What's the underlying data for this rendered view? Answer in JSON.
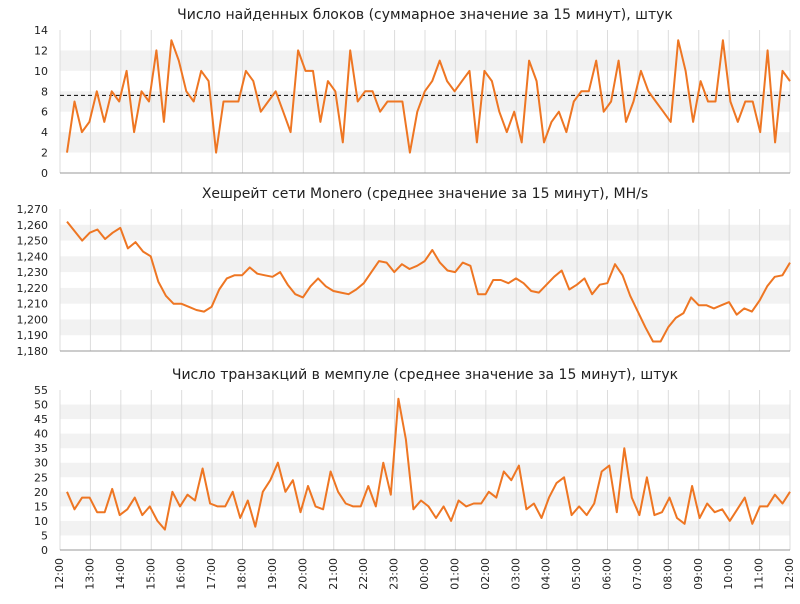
{
  "colors": {
    "series": "#ee7623",
    "band": "#f2f2f2",
    "grid_v": "#dcdcdc",
    "axis": "#999999",
    "reference": "#000000"
  },
  "x_ticks": [
    "12:00",
    "13:00",
    "14:00",
    "15:00",
    "16:00",
    "17:00",
    "18:00",
    "19:00",
    "20:00",
    "21:00",
    "22:00",
    "23:00",
    "00:00",
    "01:00",
    "02:00",
    "03:00",
    "04:00",
    "05:00",
    "06:00",
    "07:00",
    "08:00",
    "09:00",
    "10:00",
    "11:00",
    "12:00"
  ],
  "chart_data": [
    {
      "type": "line",
      "title": "Число найденных блоков (суммарное значение за 15 минут), штук",
      "ylim": [
        0,
        14
      ],
      "yticks": [
        "0",
        "2",
        "4",
        "6",
        "8",
        "10",
        "12",
        "14"
      ],
      "reference_line": 7.6,
      "grid": true,
      "values": [
        2,
        7,
        4,
        5,
        8,
        5,
        8,
        7,
        10,
        4,
        8,
        7,
        12,
        5,
        13,
        11,
        8,
        7,
        10,
        9,
        2,
        7,
        7,
        7,
        10,
        9,
        6,
        7,
        8,
        6,
        4,
        12,
        10,
        10,
        5,
        9,
        8,
        3,
        12,
        7,
        8,
        8,
        6,
        7,
        7,
        7,
        2,
        6,
        8,
        9,
        11,
        9,
        8,
        9,
        10,
        3,
        10,
        9,
        6,
        4,
        6,
        3,
        11,
        9,
        3,
        5,
        6,
        4,
        7,
        8,
        8,
        11,
        6,
        7,
        11,
        5,
        7,
        10,
        8,
        7,
        6,
        5,
        13,
        10,
        5,
        9,
        7,
        7,
        13,
        7,
        5,
        7,
        7,
        4,
        12,
        3,
        10,
        9
      ]
    },
    {
      "type": "line",
      "title": "Хешрейт сети Monero (среднее значение за 15 минут), MH/s",
      "ylim": [
        1180,
        1270
      ],
      "yticks": [
        "1,180",
        "1,190",
        "1,200",
        "1,210",
        "1,220",
        "1,230",
        "1,240",
        "1,250",
        "1,260",
        "1,270"
      ],
      "grid": true,
      "values": [
        1262,
        1256,
        1250,
        1255,
        1257,
        1251,
        1255,
        1258,
        1245,
        1249,
        1243,
        1240,
        1224,
        1215,
        1210,
        1210,
        1208,
        1206,
        1205,
        1208,
        1219,
        1226,
        1228,
        1228,
        1233,
        1229,
        1228,
        1227,
        1230,
        1222,
        1216,
        1214,
        1221,
        1226,
        1221,
        1218,
        1217,
        1216,
        1219,
        1223,
        1230,
        1237,
        1236,
        1230,
        1235,
        1232,
        1234,
        1237,
        1244,
        1236,
        1231,
        1230,
        1236,
        1234,
        1216,
        1216,
        1225,
        1225,
        1223,
        1226,
        1223,
        1218,
        1217,
        1222,
        1227,
        1231,
        1219,
        1222,
        1226,
        1216,
        1222,
        1223,
        1235,
        1228,
        1215,
        1205,
        1195,
        1186,
        1186,
        1195,
        1201,
        1204,
        1214,
        1209,
        1209,
        1207,
        1209,
        1211,
        1203,
        1207,
        1205,
        1212,
        1221,
        1227,
        1228,
        1236
      ]
    },
    {
      "type": "line",
      "title": "Число транзакций в мемпуле (среднее значение за 15 минут), штук",
      "ylim": [
        0,
        55
      ],
      "yticks": [
        "0",
        "5",
        "10",
        "15",
        "20",
        "25",
        "30",
        "35",
        "40",
        "45",
        "50",
        "55"
      ],
      "grid": true,
      "values": [
        20,
        14,
        18,
        18,
        13,
        13,
        21,
        12,
        14,
        18,
        12,
        15,
        10,
        7,
        20,
        15,
        19,
        17,
        28,
        16,
        15,
        15,
        20,
        11,
        17,
        8,
        20,
        24,
        30,
        20,
        24,
        13,
        22,
        15,
        14,
        27,
        20,
        16,
        15,
        15,
        22,
        15,
        30,
        19,
        52,
        38,
        14,
        17,
        15,
        11,
        15,
        10,
        17,
        15,
        16,
        16,
        20,
        18,
        27,
        24,
        29,
        14,
        16,
        11,
        18,
        23,
        25,
        12,
        15,
        12,
        16,
        27,
        29,
        13,
        35,
        18,
        12,
        25,
        12,
        13,
        18,
        11,
        9,
        22,
        11,
        16,
        13,
        14,
        10,
        14,
        18,
        9,
        15,
        15,
        19,
        16,
        20
      ]
    }
  ]
}
